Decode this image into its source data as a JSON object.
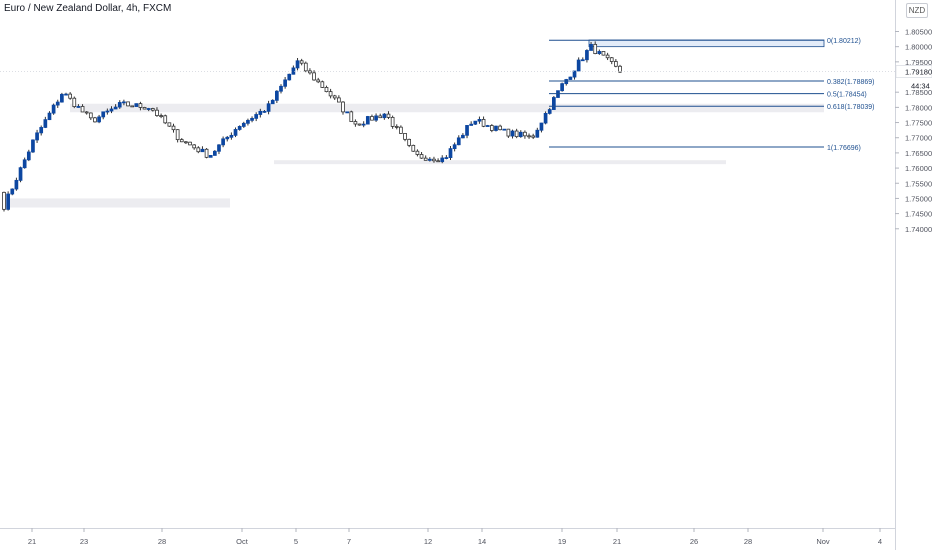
{
  "header": {
    "title": "Euro / New Zealand Dollar, 4h, FXCM",
    "currency": "NZD"
  },
  "colors": {
    "up": "#0d47a1",
    "down": "#ffffff",
    "wick": "#333333",
    "fib": "#1e4f8f",
    "zone": "#ececf0",
    "highlight_zone": "#e3ecf9",
    "price_label_bg": "#ffffff"
  },
  "price_axis": {
    "ticks": [
      "1.80500",
      "1.80000",
      "1.79500",
      "1.78500",
      "1.78000",
      "1.77500",
      "1.77000",
      "1.76500",
      "1.76000",
      "1.75500",
      "1.75000",
      "1.74500",
      "1.74000"
    ],
    "last_price": "1.79180",
    "countdown": "44:34"
  },
  "time_axis": {
    "ticks": [
      "21",
      "23",
      "28",
      "Oct",
      "5",
      "7",
      "12",
      "14",
      "19",
      "21",
      "26",
      "28",
      "Nov",
      "4"
    ]
  },
  "fib_labels": [
    "0(1.80212)",
    "0.382(1.78869)",
    "0.5(1.78454)",
    "0.618(1.78039)",
    "1(1.76696)"
  ],
  "chart_data": {
    "type": "candlestick",
    "title": "Euro / New Zealand Dollar, 4h, FXCM",
    "ylim": [
      1.7385,
      1.8075
    ],
    "y_ticks": [
      1.805,
      1.8,
      1.795,
      1.785,
      1.78,
      1.775,
      1.77,
      1.765,
      1.76,
      1.755,
      1.75,
      1.745,
      1.74
    ],
    "x_tick_labels": [
      "21",
      "23",
      "28",
      "Oct",
      "5",
      "7",
      "12",
      "14",
      "19",
      "21",
      "26",
      "28",
      "Nov",
      "4"
    ],
    "last_price": 1.7918,
    "fibonacci": [
      {
        "level": "0",
        "price": 1.80212
      },
      {
        "level": "0.382",
        "price": 1.78869
      },
      {
        "level": "0.5",
        "price": 1.78454
      },
      {
        "level": "0.618",
        "price": 1.78039
      },
      {
        "level": "1",
        "price": 1.76696
      }
    ],
    "zones": [
      {
        "from": 1.7784,
        "to": 1.7812
      },
      {
        "from": 1.7613,
        "to": 1.7626
      },
      {
        "from": 1.747,
        "to": 1.75
      },
      {
        "from": 1.8,
        "to": 1.8022
      }
    ],
    "key_points": [
      {
        "label": "21",
        "close": 1.7475
      },
      {
        "label": "23",
        "close": 1.769
      },
      {
        "label": "",
        "close": 1.785
      },
      {
        "label": "28",
        "close": 1.7755
      },
      {
        "label": "",
        "close": 1.781
      },
      {
        "label": "Oct",
        "close": 1.78
      },
      {
        "label": "",
        "close": 1.7695
      },
      {
        "label": "5",
        "close": 1.764
      },
      {
        "label": "",
        "close": 1.774
      },
      {
        "label": "7",
        "close": 1.78
      },
      {
        "label": "",
        "close": 1.795
      },
      {
        "label": "",
        "close": 1.7855
      },
      {
        "label": "12",
        "close": 1.7745
      },
      {
        "label": "",
        "close": 1.778
      },
      {
        "label": "14",
        "close": 1.764
      },
      {
        "label": "",
        "close": 1.763
      },
      {
        "label": "",
        "close": 1.776
      },
      {
        "label": "",
        "close": 1.772
      },
      {
        "label": "19",
        "close": 1.77
      },
      {
        "label": "",
        "close": 1.787
      },
      {
        "label": "",
        "close": 1.8
      },
      {
        "label": "21",
        "close": 1.7918
      }
    ]
  }
}
